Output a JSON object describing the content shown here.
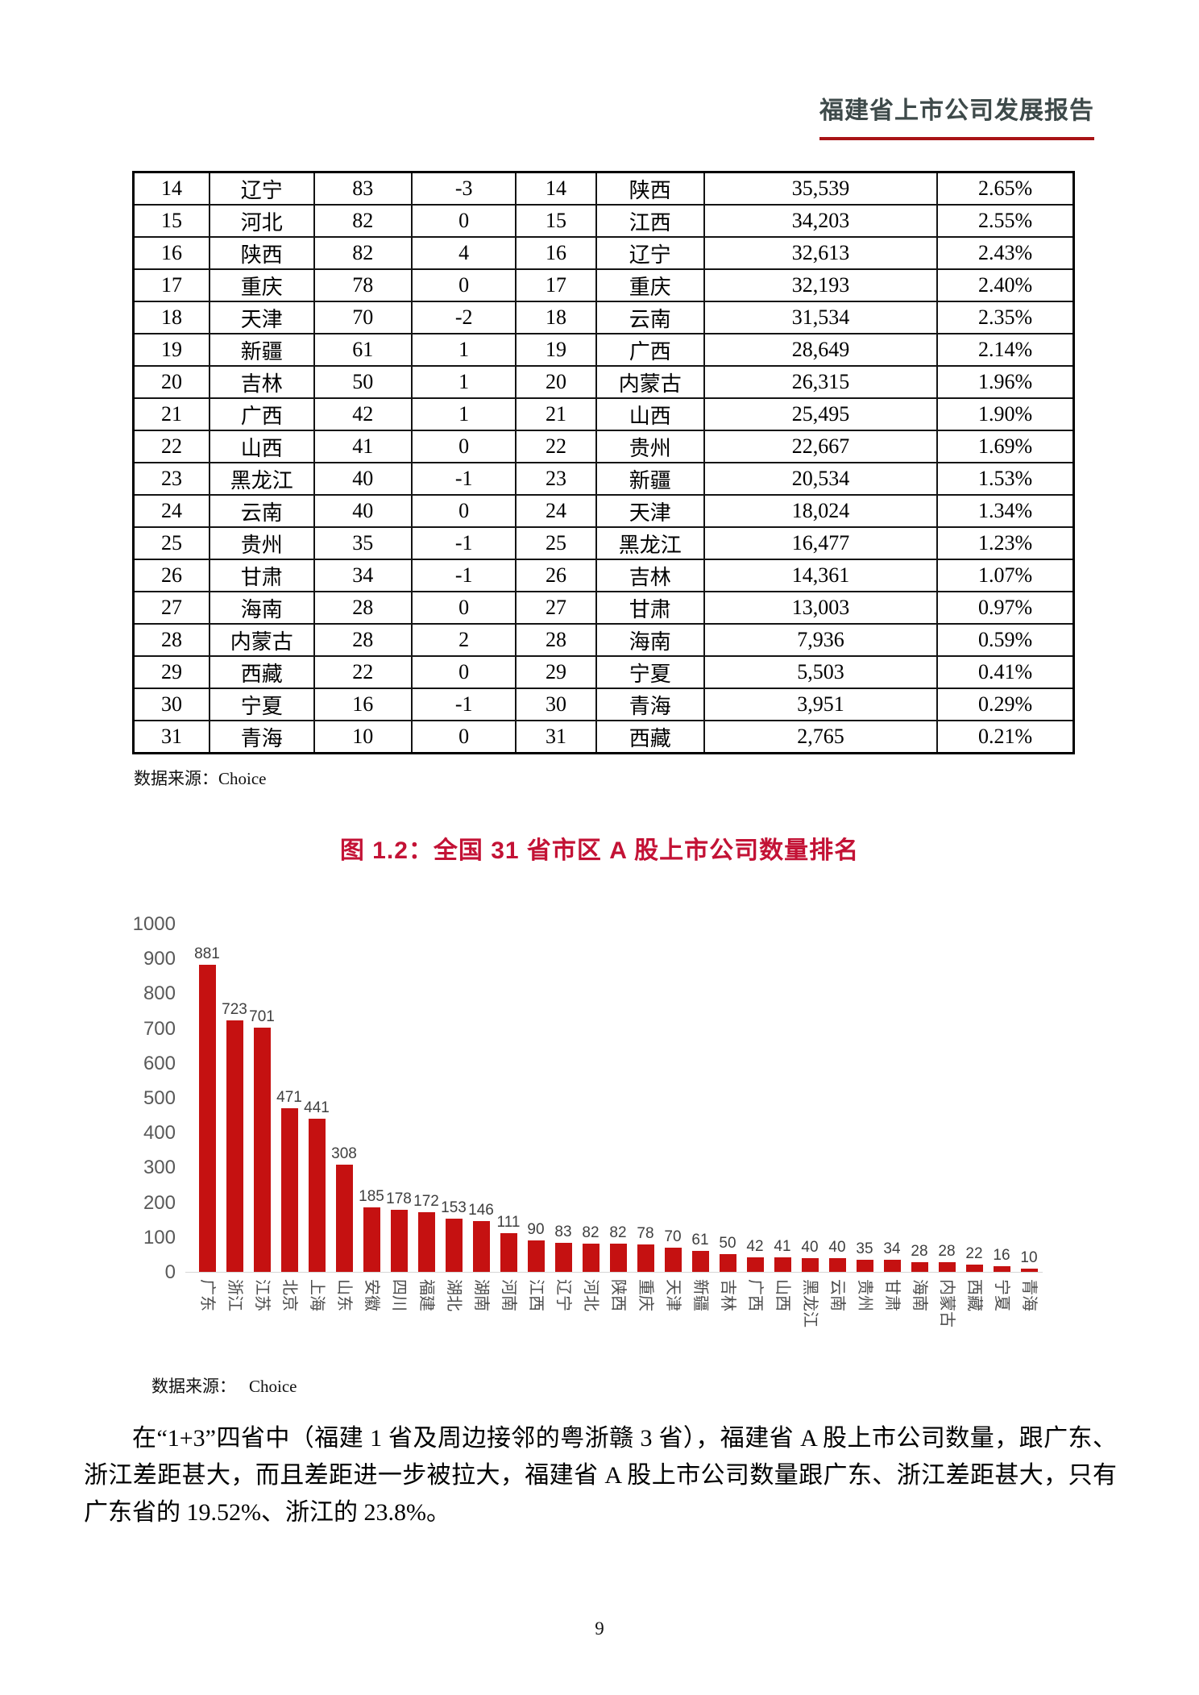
{
  "header": {
    "title": "福建省上市公司发展报告"
  },
  "table": {
    "rows": [
      [
        "14",
        "辽宁",
        "83",
        "-3",
        "14",
        "陕西",
        "35,539",
        "2.65%"
      ],
      [
        "15",
        "河北",
        "82",
        "0",
        "15",
        "江西",
        "34,203",
        "2.55%"
      ],
      [
        "16",
        "陕西",
        "82",
        "4",
        "16",
        "辽宁",
        "32,613",
        "2.43%"
      ],
      [
        "17",
        "重庆",
        "78",
        "0",
        "17",
        "重庆",
        "32,193",
        "2.40%"
      ],
      [
        "18",
        "天津",
        "70",
        "-2",
        "18",
        "云南",
        "31,534",
        "2.35%"
      ],
      [
        "19",
        "新疆",
        "61",
        "1",
        "19",
        "广西",
        "28,649",
        "2.14%"
      ],
      [
        "20",
        "吉林",
        "50",
        "1",
        "20",
        "内蒙古",
        "26,315",
        "1.96%"
      ],
      [
        "21",
        "广西",
        "42",
        "1",
        "21",
        "山西",
        "25,495",
        "1.90%"
      ],
      [
        "22",
        "山西",
        "41",
        "0",
        "22",
        "贵州",
        "22,667",
        "1.69%"
      ],
      [
        "23",
        "黑龙江",
        "40",
        "-1",
        "23",
        "新疆",
        "20,534",
        "1.53%"
      ],
      [
        "24",
        "云南",
        "40",
        "0",
        "24",
        "天津",
        "18,024",
        "1.34%"
      ],
      [
        "25",
        "贵州",
        "35",
        "-1",
        "25",
        "黑龙江",
        "16,477",
        "1.23%"
      ],
      [
        "26",
        "甘肃",
        "34",
        "-1",
        "26",
        "吉林",
        "14,361",
        "1.07%"
      ],
      [
        "27",
        "海南",
        "28",
        "0",
        "27",
        "甘肃",
        "13,003",
        "0.97%"
      ],
      [
        "28",
        "内蒙古",
        "28",
        "2",
        "28",
        "海南",
        "7,936",
        "0.59%"
      ],
      [
        "29",
        "西藏",
        "22",
        "0",
        "29",
        "宁夏",
        "5,503",
        "0.41%"
      ],
      [
        "30",
        "宁夏",
        "16",
        "-1",
        "30",
        "青海",
        "3,951",
        "0.29%"
      ],
      [
        "31",
        "青海",
        "10",
        "0",
        "31",
        "西藏",
        "2,765",
        "0.21%"
      ]
    ]
  },
  "sources": {
    "label": "数据来源：",
    "table_source": "Choice",
    "chart_source": "Choice"
  },
  "figure": {
    "title": "图 1.2：全国 31 省市区 A 股上市公司数量排名"
  },
  "chart_data": {
    "type": "bar",
    "title": "图 1.2：全国 31 省市区 A 股上市公司数量排名",
    "categories": [
      "广东",
      "浙江",
      "江苏",
      "北京",
      "上海",
      "山东",
      "安徽",
      "四川",
      "福建",
      "湖北",
      "湖南",
      "河南",
      "江西",
      "辽宁",
      "河北",
      "陕西",
      "重庆",
      "天津",
      "新疆",
      "吉林",
      "广西",
      "山西",
      "黑龙江",
      "云南",
      "贵州",
      "甘肃",
      "海南",
      "内蒙古",
      "西藏",
      "宁夏",
      "青海"
    ],
    "values": [
      881,
      723,
      701,
      471,
      441,
      308,
      185,
      178,
      172,
      153,
      146,
      111,
      90,
      83,
      82,
      82,
      78,
      70,
      61,
      50,
      42,
      41,
      40,
      40,
      35,
      34,
      28,
      28,
      22,
      16,
      10
    ],
    "ylim": [
      0,
      1000
    ],
    "ytick_interval": 100,
    "grid": false,
    "legend": "none",
    "data_labels": true,
    "bar_color": "#C51111"
  },
  "paragraph": "在“1+3”四省中（福建 1 省及周边接邻的粤浙赣 3 省），福建省 A 股上市公司数量，跟广东、浙江差距甚大，而且差距进一步被拉大，福建省 A 股上市公司数量跟广东、浙江差距甚大，只有广东省的 19.52%、浙江的 23.8%。",
  "page": {
    "number": "9"
  },
  "colors": {
    "header_title": "#3E4A4A",
    "header_underline": "#A81315",
    "figure_title_red": "#C31235",
    "bar_red": "#C51111"
  }
}
